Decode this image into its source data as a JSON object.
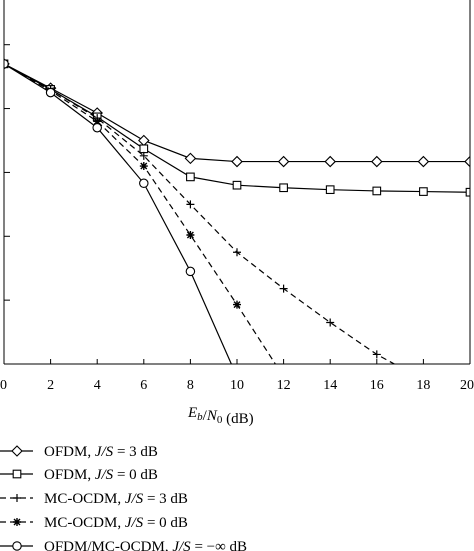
{
  "chart_data": {
    "type": "line",
    "title": "",
    "xlabel": {
      "parts": [
        {
          "text": "E",
          "style": "italic"
        },
        {
          "text": "b",
          "style": "italic-sub"
        },
        {
          "text": "/",
          "style": "normal"
        },
        {
          "text": "N",
          "style": "italic"
        },
        {
          "text": "0",
          "style": "sub"
        },
        {
          "text": " (dB)",
          "style": "normal"
        }
      ]
    },
    "ylabel": "",
    "x_ticks": [
      0,
      2,
      4,
      6,
      8,
      10,
      12,
      14,
      16,
      18,
      20
    ],
    "xlim": [
      0,
      20
    ],
    "y_scale": "log",
    "ylim_exponent": [
      -6,
      -0.3
    ],
    "y_minor_tick_exponents": [
      -5,
      -4,
      -3,
      -2,
      -1
    ],
    "legend_position": "below",
    "series": [
      {
        "name": "OFDM, J/S = 3 dB",
        "legend_parts": [
          {
            "text": "OFDM, ",
            "style": "normal"
          },
          {
            "text": "J/S",
            "style": "italic"
          },
          {
            "text": " = 3 dB",
            "style": "normal"
          }
        ],
        "marker": "diamond",
        "dash": "solid",
        "x": [
          0,
          2,
          4,
          6,
          8,
          10,
          12,
          14,
          16,
          18,
          20
        ],
        "log10_y": [
          -1.3,
          -1.68,
          -2.07,
          -2.5,
          -2.78,
          -2.83,
          -2.83,
          -2.83,
          -2.83,
          -2.83,
          -2.83
        ]
      },
      {
        "name": "OFDM, J/S = 0 dB",
        "legend_parts": [
          {
            "text": "OFDM, ",
            "style": "normal"
          },
          {
            "text": "J/S",
            "style": "italic"
          },
          {
            "text": " = 0 dB",
            "style": "normal"
          }
        ],
        "marker": "square",
        "dash": "solid",
        "x": [
          0,
          2,
          4,
          6,
          8,
          10,
          12,
          14,
          16,
          18,
          20
        ],
        "log10_y": [
          -1.3,
          -1.7,
          -2.13,
          -2.63,
          -3.07,
          -3.2,
          -3.24,
          -3.27,
          -3.29,
          -3.3,
          -3.31
        ]
      },
      {
        "name": "MC-OCDM, J/S = 3 dB",
        "legend_parts": [
          {
            "text": "MC-OCDM, ",
            "style": "normal"
          },
          {
            "text": "J/S",
            "style": "italic"
          },
          {
            "text": " = 3 dB",
            "style": "normal"
          }
        ],
        "marker": "plus",
        "dash": "dashed",
        "x": [
          0,
          2,
          4,
          6,
          8,
          10,
          12,
          14,
          16,
          18,
          20
        ],
        "log10_y": [
          -1.3,
          -1.7,
          -2.15,
          -2.74,
          -3.5,
          -4.25,
          -4.82,
          -5.35,
          -5.85,
          -6.25,
          -6.6
        ]
      },
      {
        "name": "MC-OCDM, J/S = 0 dB",
        "legend_parts": [
          {
            "text": "MC-OCDM, ",
            "style": "normal"
          },
          {
            "text": "J/S",
            "style": "italic"
          },
          {
            "text": " = 0 dB",
            "style": "normal"
          }
        ],
        "marker": "asterisk",
        "dash": "dashed",
        "x": [
          0,
          2,
          4,
          6,
          8,
          10,
          12
        ],
        "log10_y": [
          -1.3,
          -1.72,
          -2.2,
          -2.9,
          -3.98,
          -5.07,
          -6.2
        ]
      },
      {
        "name": "OFDM/MC-OCDM, J/S = −∞ dB",
        "legend_parts": [
          {
            "text": "OFDM/MC-OCDM, ",
            "style": "normal"
          },
          {
            "text": "J/S",
            "style": "italic"
          },
          {
            "text": " = −∞ dB",
            "style": "normal"
          }
        ],
        "marker": "circle",
        "dash": "solid",
        "x": [
          0,
          2,
          4,
          6,
          8,
          10
        ],
        "log10_y": [
          -1.3,
          -1.75,
          -2.3,
          -3.17,
          -4.55,
          -6.2
        ]
      }
    ]
  }
}
